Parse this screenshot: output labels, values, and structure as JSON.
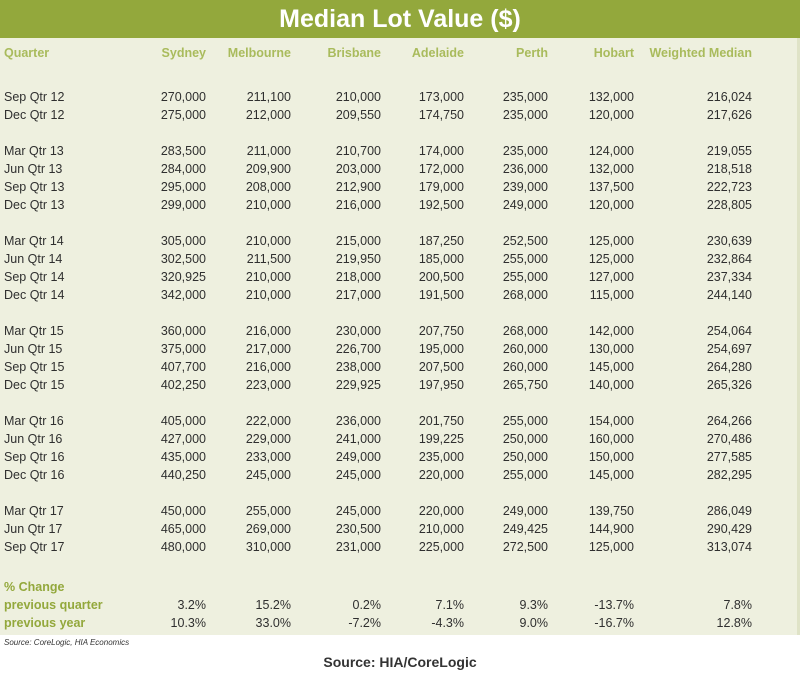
{
  "title": "Median Lot Value ($)",
  "headers": [
    "Quarter",
    "Sydney",
    "Melbourne",
    "Brisbane",
    "Adelaide",
    "Perth",
    "Hobart",
    "Weighted Median"
  ],
  "groups": [
    [
      [
        "Sep Qtr 12",
        "270,000",
        "211,100",
        "210,000",
        "173,000",
        "235,000",
        "132,000",
        "216,024"
      ],
      [
        "Dec Qtr 12",
        "275,000",
        "212,000",
        "209,550",
        "174,750",
        "235,000",
        "120,000",
        "217,626"
      ]
    ],
    [
      [
        "Mar Qtr 13",
        "283,500",
        "211,000",
        "210,700",
        "174,000",
        "235,000",
        "124,000",
        "219,055"
      ],
      [
        "Jun Qtr 13",
        "284,000",
        "209,900",
        "203,000",
        "172,000",
        "236,000",
        "132,000",
        "218,518"
      ],
      [
        "Sep Qtr 13",
        "295,000",
        "208,000",
        "212,900",
        "179,000",
        "239,000",
        "137,500",
        "222,723"
      ],
      [
        "Dec Qtr 13",
        "299,000",
        "210,000",
        "216,000",
        "192,500",
        "249,000",
        "120,000",
        "228,805"
      ]
    ],
    [
      [
        "Mar Qtr 14",
        "305,000",
        "210,000",
        "215,000",
        "187,250",
        "252,500",
        "125,000",
        "230,639"
      ],
      [
        "Jun Qtr 14",
        "302,500",
        "211,500",
        "219,950",
        "185,000",
        "255,000",
        "125,000",
        "232,864"
      ],
      [
        "Sep Qtr 14",
        "320,925",
        "210,000",
        "218,000",
        "200,500",
        "255,000",
        "127,000",
        "237,334"
      ],
      [
        "Dec Qtr 14",
        "342,000",
        "210,000",
        "217,000",
        "191,500",
        "268,000",
        "115,000",
        "244,140"
      ]
    ],
    [
      [
        "Mar Qtr 15",
        "360,000",
        "216,000",
        "230,000",
        "207,750",
        "268,000",
        "142,000",
        "254,064"
      ],
      [
        "Jun Qtr 15",
        "375,000",
        "217,000",
        "226,700",
        "195,000",
        "260,000",
        "130,000",
        "254,697"
      ],
      [
        "Sep Qtr 15",
        "407,700",
        "216,000",
        "238,000",
        "207,500",
        "260,000",
        "145,000",
        "264,280"
      ],
      [
        "Dec Qtr 15",
        "402,250",
        "223,000",
        "229,925",
        "197,950",
        "265,750",
        "140,000",
        "265,326"
      ]
    ],
    [
      [
        "Mar Qtr 16",
        "405,000",
        "222,000",
        "236,000",
        "201,750",
        "255,000",
        "154,000",
        "264,266"
      ],
      [
        "Jun Qtr 16",
        "427,000",
        "229,000",
        "241,000",
        "199,225",
        "250,000",
        "160,000",
        "270,486"
      ],
      [
        "Sep Qtr 16",
        "435,000",
        "233,000",
        "249,000",
        "235,000",
        "250,000",
        "150,000",
        "277,585"
      ],
      [
        "Dec Qtr 16",
        "440,250",
        "245,000",
        "245,000",
        "220,000",
        "255,000",
        "145,000",
        "282,295"
      ]
    ],
    [
      [
        "Mar Qtr 17",
        "450,000",
        "255,000",
        "245,000",
        "220,000",
        "249,000",
        "139,750",
        "286,049"
      ],
      [
        "Jun Qtr 17",
        "465,000",
        "269,000",
        "230,500",
        "210,000",
        "249,425",
        "144,900",
        "290,429"
      ],
      [
        "Sep Qtr 17",
        "480,000",
        "310,000",
        "231,000",
        "225,000",
        "272,500",
        "125,000",
        "313,074"
      ]
    ]
  ],
  "pct_heading": "% Change",
  "pct_rows": [
    [
      "previous quarter",
      "3.2%",
      "15.2%",
      "0.2%",
      "7.1%",
      "9.3%",
      "-13.7%",
      "7.8%"
    ],
    [
      "previous year",
      "10.3%",
      "33.0%",
      "-7.2%",
      "-4.3%",
      "9.0%",
      "-16.7%",
      "12.8%"
    ]
  ],
  "footnote": "Source: CoreLogic, HIA Economics",
  "source": "Source: HIA/CoreLogic",
  "colors": {
    "banner": "#93a83c",
    "panel": "#eef0df",
    "header_text": "#a9bb5c"
  }
}
